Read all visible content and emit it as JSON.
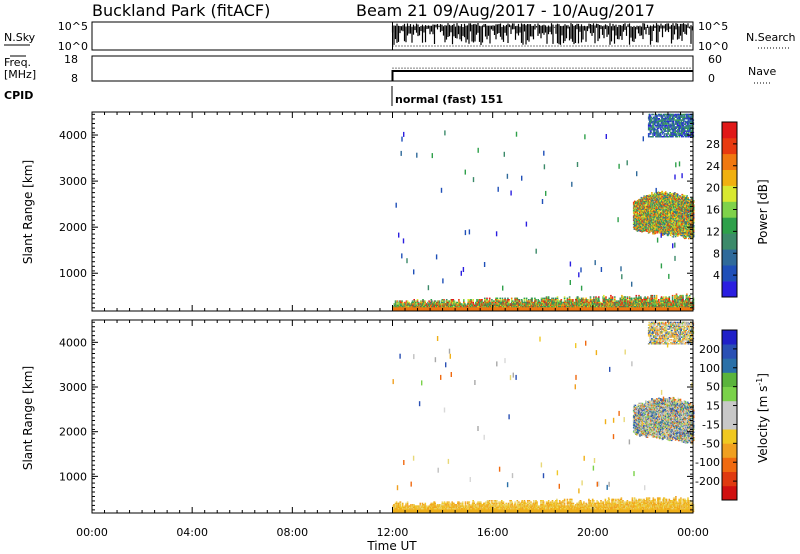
{
  "header": {
    "station": "Buckland Park (fitACF)",
    "beam_info": "Beam 21  09/Aug/2017 - 10/Aug/2017"
  },
  "colors": {
    "power_scale": [
      "#2b1fe0",
      "#1f4fb8",
      "#2f6a9a",
      "#3c8a6a",
      "#2ea04a",
      "#7fd24a",
      "#d8e830",
      "#f0b010",
      "#f07810",
      "#e83a10",
      "#e01818"
    ],
    "velocity_scale": [
      "#2020c8",
      "#2a50b4",
      "#2a70a8",
      "#5ab43c",
      "#7ad24a",
      "#c8c8c8",
      "#c8c8c8",
      "#f0c820",
      "#f0a020",
      "#f06a10",
      "#e03a10",
      "#d01010"
    ],
    "velocity_scatter": [
      "#f0c828",
      "#f0b018",
      "#f0a020",
      "#e8d878",
      "#d8d8d8",
      "#c0c0c0",
      "#a8a8a8",
      "#f06a10",
      "#7ad24a",
      "#2a50b4",
      "#2a70a8"
    ]
  },
  "chart_data": [
    {
      "type": "line",
      "name": "N.Sky / N.Search",
      "left_labels": {
        "title": "N.Sky",
        "ticks": [
          "10^5",
          "10^0"
        ]
      },
      "right_labels": {
        "title": "N.Search",
        "ticks": [
          "10^5",
          "10^0"
        ]
      },
      "xlim": [
        0,
        24
      ],
      "data_start_hour": 12
    },
    {
      "type": "line",
      "name": "Freq / Nave",
      "left_labels": {
        "title": "Freq.",
        "unit": "[MHz]",
        "ticks": [
          "18",
          "8"
        ]
      },
      "right_labels": {
        "title": "Nave",
        "ticks": [
          "60",
          "0"
        ]
      },
      "freq_mhz": 12,
      "nave": 31,
      "xlim": [
        0,
        24
      ],
      "data_start_hour": 12
    },
    {
      "type": "table",
      "cpid_label": "CPID",
      "program": "normal (fast) 151",
      "start_hour": 12
    },
    {
      "type": "heatmap",
      "variable": "power",
      "ylabel": "Slant Range [km]",
      "yticks": [
        1000,
        2000,
        3000,
        4000
      ],
      "ylim": [
        180,
        4500
      ],
      "xlim": [
        0,
        24
      ],
      "colorbar": {
        "title": "Power [dB]",
        "ticks": [
          "4",
          "8",
          "12",
          "16",
          "20",
          "24",
          "28"
        ],
        "range": [
          0,
          30
        ]
      },
      "regions": [
        {
          "t0": 12.0,
          "t1": 24.0,
          "r0": 200,
          "r1": 550,
          "description": "ground scatter band"
        },
        {
          "t0": 21.6,
          "t1": 24.0,
          "r0": 1700,
          "r1": 2700,
          "description": "ionospheric scatter patch"
        },
        {
          "t0": 22.2,
          "t1": 24.0,
          "r0": 3950,
          "r1": 4450,
          "description": "far range scatter"
        }
      ]
    },
    {
      "type": "heatmap",
      "variable": "velocity",
      "ylabel": "Slant Range [km]",
      "yticks": [
        1000,
        2000,
        3000,
        4000
      ],
      "ylim": [
        180,
        4500
      ],
      "xlim": [
        0,
        24
      ],
      "colorbar": {
        "title": "Velocity [m s^-1]",
        "ticks": [
          "200",
          "100",
          "50",
          "15",
          "-15",
          "-50",
          "-100",
          "-200"
        ]
      },
      "regions": [
        {
          "t0": 12.0,
          "t1": 24.0,
          "r0": 200,
          "r1": 550,
          "description": "ground scatter band"
        },
        {
          "t0": 21.6,
          "t1": 24.0,
          "r0": 1700,
          "r1": 2700,
          "description": "ionospheric scatter patch"
        },
        {
          "t0": 22.2,
          "t1": 24.0,
          "r0": 3950,
          "r1": 4450,
          "description": "far range scatter"
        }
      ]
    }
  ],
  "x_axis": {
    "label": "Time UT",
    "ticks": [
      "00:00",
      "04:00",
      "08:00",
      "12:00",
      "16:00",
      "20:00",
      "00:00"
    ],
    "tick_hours": [
      0,
      4,
      8,
      12,
      16,
      20,
      24
    ]
  }
}
